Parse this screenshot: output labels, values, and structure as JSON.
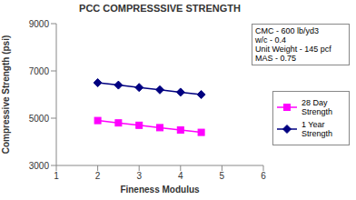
{
  "chart_data": {
    "type": "line",
    "title": "PCC COMPRESSSIVE STRENGTH",
    "x_label": "Fineness Modulus",
    "y_label": "Compressive Strength (psi)",
    "x": [
      2,
      2.5,
      3,
      3.5,
      4,
      4.5
    ],
    "series": [
      {
        "name": "28 Day Strength",
        "color": "#ff00ff",
        "marker": "square",
        "values": [
          4900,
          4800,
          4700,
          4600,
          4500,
          4400
        ]
      },
      {
        "name": "1 Year Strength",
        "color": "#000080",
        "marker": "diamond",
        "values": [
          6500,
          6400,
          6300,
          6200,
          6100,
          6000
        ]
      }
    ],
    "xlim": [
      1,
      6
    ],
    "xticks": [
      1,
      2,
      3,
      4,
      5,
      6
    ],
    "ylim": [
      3000,
      9000
    ],
    "yticks": [
      3000,
      5000,
      7000,
      9000
    ],
    "legend": "right",
    "annotations": [
      "CMC - 600 lb/yd3",
      "w/c - 0.4",
      "Unit Weight - 145 pcf",
      "MAS - 0.75"
    ]
  }
}
